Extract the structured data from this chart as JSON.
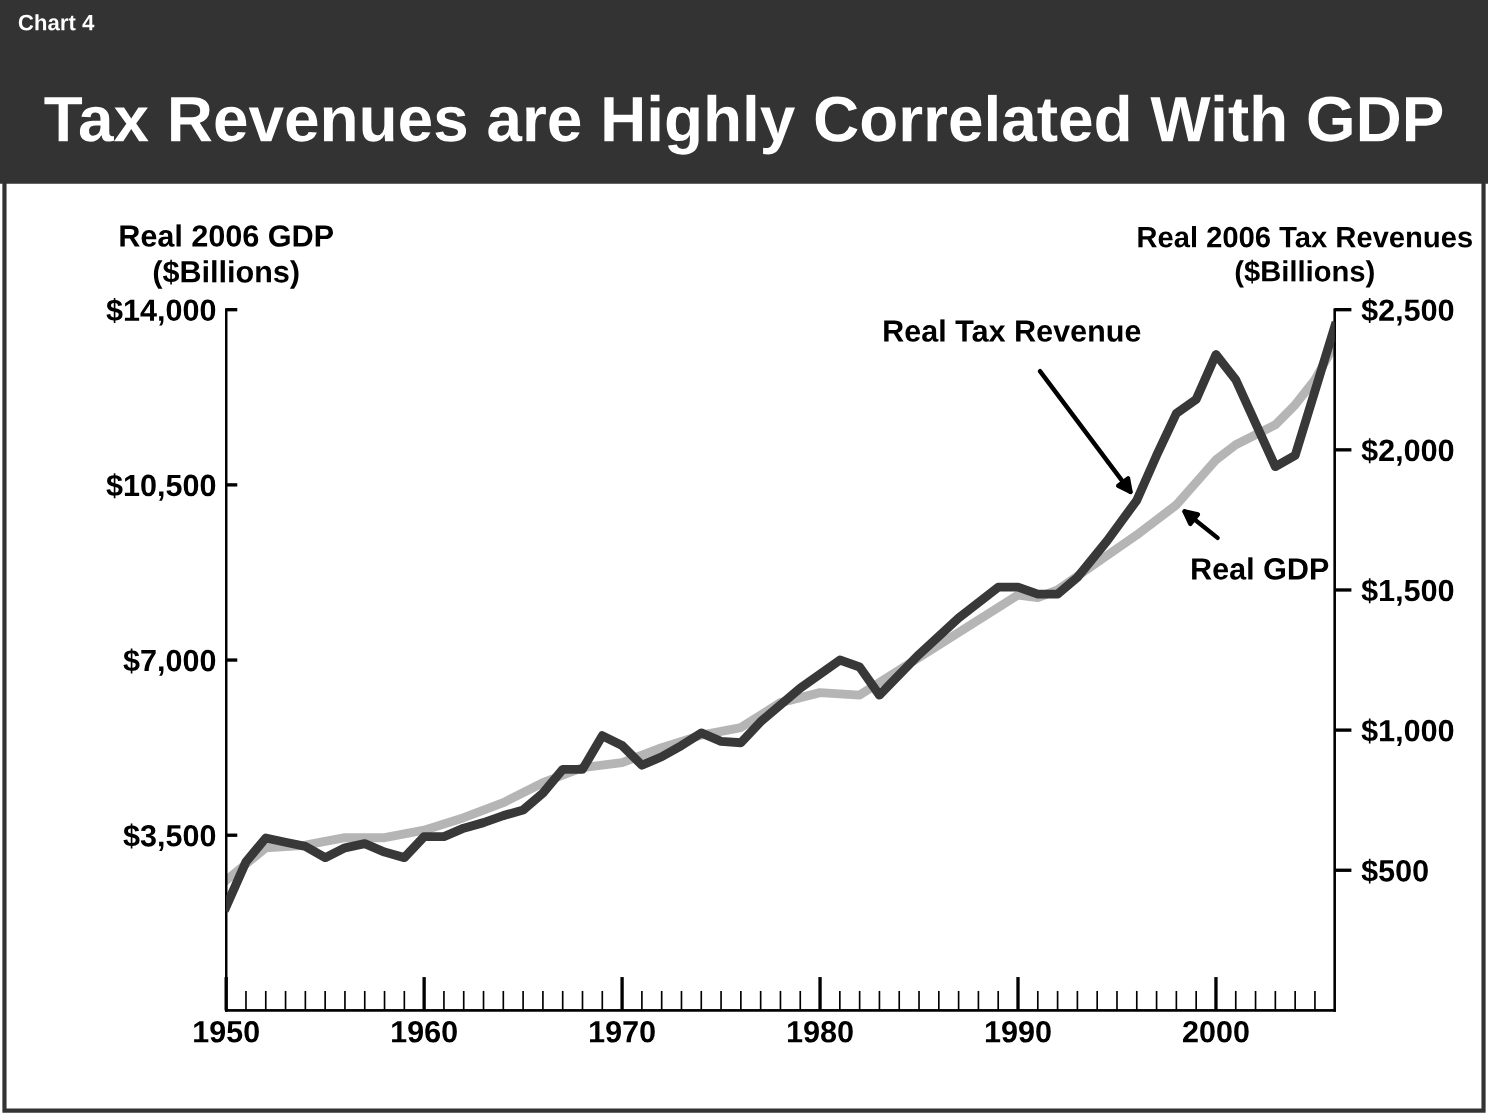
{
  "chart_data": {
    "type": "line",
    "title": "Tax Revenues are Highly Correlated With GDP",
    "annotations": [
      "Chart 4"
    ],
    "ylabel": "Real 2006 GDP\n($Billions)",
    "y2label": "Real 2006 Tax Revenues\n($Billions)",
    "series": [
      {
        "name": "Real GDP",
        "color": "#b5b5b5",
        "x": [
          1950,
          1952,
          1954,
          1956,
          1958,
          1960,
          1962,
          1964,
          1966,
          1968,
          1970,
          1972,
          1974,
          1976,
          1978,
          1980,
          1982,
          1984,
          1986,
          1988,
          1990,
          1991,
          1992,
          1994,
          1996,
          1998,
          2000,
          2001,
          2002,
          2003,
          2004,
          2005,
          2006
        ],
        "values": [
          2600,
          3250,
          3300,
          3450,
          3450,
          3600,
          3850,
          4150,
          4550,
          4850,
          4950,
          5250,
          5500,
          5650,
          6150,
          6350,
          6300,
          6800,
          7300,
          7800,
          8300,
          8250,
          8400,
          8950,
          9500,
          10100,
          11000,
          11300,
          11500,
          11700,
          12100,
          12600,
          13300
        ]
      },
      {
        "name": "Real Tax Revenue",
        "color": "#383838",
        "axis": "y2",
        "x": [
          1950,
          1951,
          1952,
          1953,
          1954,
          1955,
          1956,
          1957,
          1958,
          1959,
          1960,
          1961,
          1962,
          1963,
          1964,
          1965,
          1966,
          1967,
          1968,
          1969,
          1970,
          1971,
          1972,
          1973,
          1974,
          1975,
          1976,
          1977,
          1978,
          1979,
          1981,
          1982,
          1983,
          1985,
          1987,
          1989,
          1990,
          1991,
          1992,
          1993,
          1994.5,
          1996,
          1997,
          1998,
          1999,
          2000,
          2001,
          2003,
          2004,
          2006
        ],
        "values": [
          370,
          530,
          615,
          600,
          585,
          545,
          580,
          595,
          565,
          545,
          620,
          620,
          650,
          670,
          695,
          715,
          775,
          860,
          860,
          980,
          945,
          875,
          905,
          945,
          990,
          960,
          955,
          1030,
          1090,
          1150,
          1250,
          1225,
          1125,
          1270,
          1400,
          1510,
          1510,
          1485,
          1485,
          1545,
          1675,
          1820,
          1980,
          2130,
          2180,
          2340,
          2250,
          1940,
          1980,
          2440
        ]
      }
    ],
    "xlim": [
      1950,
      2006
    ],
    "xticks": [
      1950,
      {
        "value": 1951,
        "label": null
      },
      {
        "value": 1952,
        "label": null
      },
      {
        "value": 1953,
        "label": null
      },
      {
        "value": 1954,
        "label": null
      },
      {
        "value": 1955,
        "label": null
      },
      {
        "value": 1956,
        "label": null
      },
      {
        "value": 1957,
        "label": null
      },
      {
        "value": 1958,
        "label": null
      },
      {
        "value": 1959,
        "label": null
      },
      1960,
      {
        "value": 1961,
        "label": null
      },
      {
        "value": 1962,
        "label": null
      },
      {
        "value": 1963,
        "label": null
      },
      {
        "value": 1964,
        "label": null
      },
      {
        "value": 1965,
        "label": null
      },
      {
        "value": 1966,
        "label": null
      },
      {
        "value": 1967,
        "label": null
      },
      {
        "value": 1968,
        "label": null
      },
      {
        "value": 1969,
        "label": null
      },
      1970,
      {
        "value": 1971,
        "label": null
      },
      {
        "value": 1972,
        "label": null
      },
      {
        "value": 1973,
        "label": null
      },
      {
        "value": 1974,
        "label": null
      },
      {
        "value": 1975,
        "label": null
      },
      {
        "value": 1976,
        "label": null
      },
      {
        "value": 1977,
        "label": null
      },
      {
        "value": 1978,
        "label": null
      },
      {
        "value": 1979,
        "label": null
      },
      1980,
      {
        "value": 1981,
        "label": null
      },
      {
        "value": 1982,
        "label": null
      },
      {
        "value": 1983,
        "label": null
      },
      {
        "value": 1984,
        "label": null
      },
      {
        "value": 1985,
        "label": null
      },
      {
        "value": 1986,
        "label": null
      },
      {
        "value": 1987,
        "label": null
      },
      {
        "value": 1988,
        "label": null
      },
      {
        "value": 1989,
        "label": null
      },
      1990,
      {
        "value": 1991,
        "label": null
      },
      {
        "value": 1992,
        "label": null
      },
      {
        "value": 1993,
        "label": null
      },
      {
        "value": 1994,
        "label": null
      },
      {
        "value": 1995,
        "label": null
      },
      {
        "value": 1996,
        "label": null
      },
      {
        "value": 1997,
        "label": null
      },
      {
        "value": 1998,
        "label": null
      },
      {
        "value": 1999,
        "label": null
      },
      2000,
      {
        "value": 2001,
        "label": null
      },
      {
        "value": 2002,
        "label": null
      },
      {
        "value": 2003,
        "label": null
      },
      {
        "value": 2004,
        "label": null
      },
      {
        "value": 2005,
        "label": null
      }
    ],
    "ylim": [
      0,
      14000
    ],
    "yticks": [
      {
        "value": 3500,
        "label": "$3,500"
      },
      {
        "value": 7000,
        "label": "$7,000"
      },
      {
        "value": 10500,
        "label": "$10,500"
      },
      {
        "value": 14000,
        "label": "$14,000"
      }
    ],
    "y2lim": [
      0,
      2500
    ],
    "y2ticks": [
      {
        "value": 500,
        "label": "$500"
      },
      {
        "value": 1000,
        "label": "$1,000"
      },
      {
        "value": 1500,
        "label": "$1,500"
      },
      {
        "value": 2000,
        "label": "$2,000"
      },
      {
        "value": 2500,
        "label": "$2,500"
      }
    ],
    "grid": false,
    "legend": false,
    "marker": "none",
    "line_style": "solid"
  }
}
